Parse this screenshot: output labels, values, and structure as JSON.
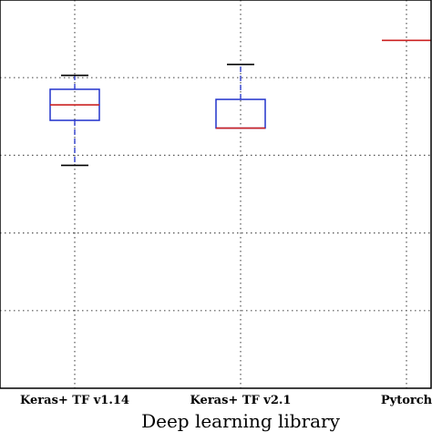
{
  "chart_data": {
    "type": "box",
    "title": "",
    "xlabel": "Deep learning library",
    "ylabel": "",
    "categories": [
      "Keras+ TF v1.14",
      "Keras+ TF v2.1",
      "Pytorch"
    ],
    "ylim": [
      0,
      5
    ],
    "grid": true,
    "boxes": [
      {
        "whisker_low": 2.87,
        "q1": 3.45,
        "median": 3.65,
        "q3": 3.85,
        "whisker_high": 4.03
      },
      {
        "whisker_low": 3.35,
        "q1": 3.35,
        "median": 3.35,
        "q3": 3.72,
        "whisker_high": 4.17
      },
      {
        "whisker_low": 4.48,
        "q1": 4.48,
        "median": 4.48,
        "q3": 4.48,
        "whisker_high": 4.48
      }
    ],
    "colors": {
      "box": "#2233cc",
      "median": "#cc2222",
      "whisker": "#2233cc",
      "cap": "#000000",
      "grid": "#555555",
      "frame": "#000000"
    }
  }
}
